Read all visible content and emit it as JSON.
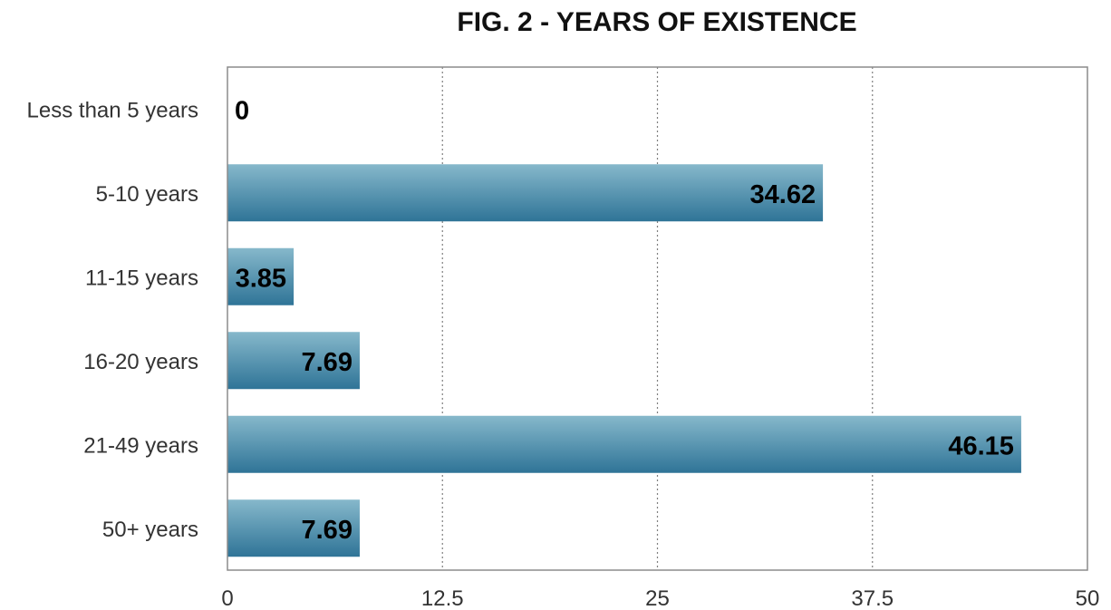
{
  "chart_data": {
    "type": "bar",
    "orientation": "horizontal",
    "title": "FIG. 2 - YEARS OF EXISTENCE",
    "categories": [
      "Less than 5 years",
      "5-10 years",
      "11-15 years",
      "16-20 years",
      "21-49 years",
      "50+ years"
    ],
    "values": [
      0,
      34.62,
      3.85,
      7.69,
      46.15,
      7.69
    ],
    "data_labels": [
      "0",
      "34.62",
      "3.85",
      "7.69",
      "46.15",
      "7.69"
    ],
    "xlim": [
      0,
      50
    ],
    "x_ticks": [
      0,
      12.5,
      25,
      37.5,
      50
    ],
    "x_tick_labels": [
      "0",
      "12.5",
      "25",
      "37.5",
      "50"
    ],
    "grid": "vertical dotted",
    "legend": "none",
    "colors": {
      "bar_top": "#86b8cb",
      "bar_bottom": "#2f7497",
      "grid": "#7f7f7f",
      "frame": "#8c8c8c"
    }
  }
}
